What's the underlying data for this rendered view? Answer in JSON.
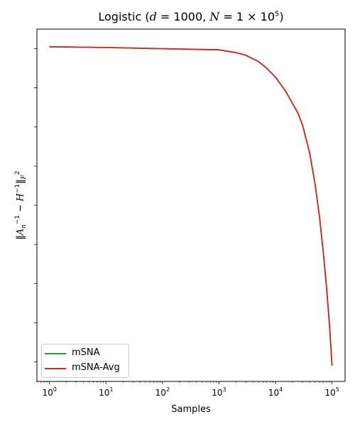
{
  "chart_data": {
    "type": "line",
    "title": "Logistic (d = 1000, N = 1 × 10^5)",
    "title_parts": {
      "prefix": "Logistic (",
      "d_var": "d",
      "d_val": " = 1000, ",
      "n_var": "N",
      "n_val": " = 1 × 10",
      "n_exp": "5",
      "suffix": ")"
    },
    "xlabel": "Samples",
    "ylabel": "‖A_n^{-1} − H^{-1}‖_F^2",
    "x_scale": "log",
    "xlim": [
      0.6,
      170000
    ],
    "y_scale": "linear",
    "y_ticklabels_shown": false,
    "xticks": [
      {
        "value": 1,
        "base": "10",
        "exp": "0"
      },
      {
        "value": 10,
        "base": "10",
        "exp": "1"
      },
      {
        "value": 100,
        "base": "10",
        "exp": "2"
      },
      {
        "value": 1000,
        "base": "10",
        "exp": "3"
      },
      {
        "value": 10000,
        "base": "10",
        "exp": "4"
      },
      {
        "value": 100000,
        "base": "10",
        "exp": "5"
      }
    ],
    "yticks": [
      0.05,
      0.15,
      0.25,
      0.35,
      0.45,
      0.55,
      0.65,
      0.75,
      0.85
    ],
    "ylim": [
      0,
      0.9
    ],
    "grid": false,
    "legend_position": "lower left",
    "series": [
      {
        "name": "mSNA",
        "color": "#2ca02c",
        "x": [
          1,
          10,
          100,
          1000,
          2000,
          3000,
          5000,
          7000,
          10000,
          15000,
          20000,
          25000,
          30000,
          40000,
          50000,
          60000,
          70000,
          80000,
          90000,
          100000
        ],
        "y": [
          0.855,
          0.853,
          0.85,
          0.847,
          0.84,
          0.833,
          0.817,
          0.8,
          0.777,
          0.742,
          0.71,
          0.685,
          0.655,
          0.585,
          0.505,
          0.42,
          0.33,
          0.24,
          0.145,
          0.04
        ]
      },
      {
        "name": "mSNA-Avg",
        "color": "#d62728",
        "x": [
          1,
          10,
          100,
          1000,
          2000,
          3000,
          5000,
          7000,
          10000,
          15000,
          20000,
          25000,
          30000,
          40000,
          50000,
          60000,
          70000,
          80000,
          90000,
          100000
        ],
        "y": [
          0.855,
          0.853,
          0.85,
          0.847,
          0.84,
          0.833,
          0.817,
          0.8,
          0.777,
          0.742,
          0.71,
          0.685,
          0.655,
          0.585,
          0.505,
          0.42,
          0.33,
          0.24,
          0.145,
          0.04
        ]
      }
    ]
  }
}
